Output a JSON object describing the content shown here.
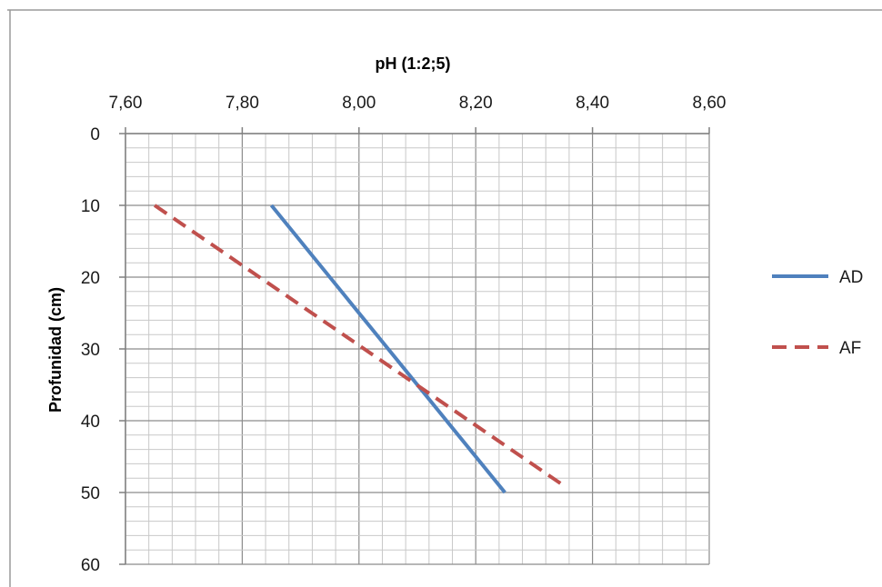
{
  "chart_data": {
    "type": "line",
    "title": "",
    "xlabel": "pH (1:2;5)",
    "ylabel": "Profunidad (cm)",
    "x_axis_position": "top",
    "y_axis_inverted": true,
    "xlim": [
      7.6,
      8.6
    ],
    "ylim": [
      0,
      60
    ],
    "x_ticks": [
      "7,60",
      "7,80",
      "8,00",
      "8,20",
      "8,40",
      "8,60"
    ],
    "y_ticks": [
      "0",
      "10",
      "20",
      "30",
      "40",
      "50",
      "60"
    ],
    "grid": "on (major and minor)",
    "legend_placement": "right",
    "series": [
      {
        "name": "AD",
        "color": "#4f81bd",
        "style": "solid",
        "points": [
          {
            "x": 7.85,
            "y": 10
          },
          {
            "x": 8.25,
            "y": 50
          }
        ]
      },
      {
        "name": "AF",
        "color": "#c0504d",
        "style": "dashed",
        "points": [
          {
            "x": 7.65,
            "y": 10
          },
          {
            "x": 8.35,
            "y": 49
          }
        ]
      }
    ]
  }
}
